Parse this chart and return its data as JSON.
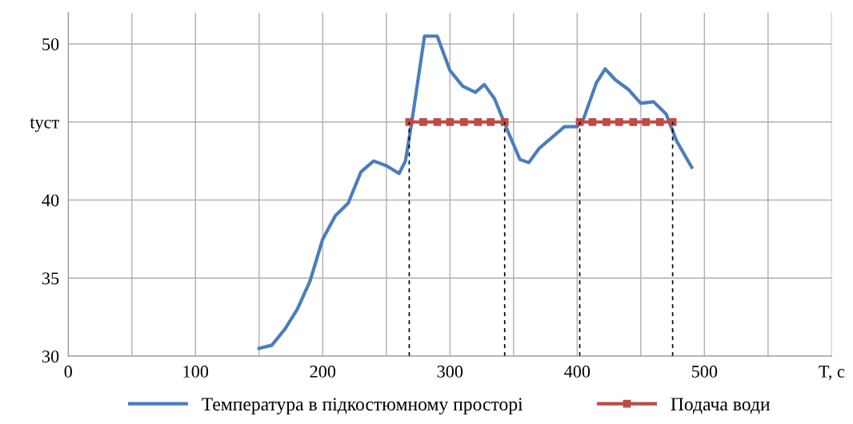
{
  "chart_data": {
    "type": "line",
    "xlim": [
      0,
      600
    ],
    "ylim": [
      30,
      52
    ],
    "xticks": [
      0,
      {
        "value": 50,
        "label": null
      },
      100,
      {
        "value": 150,
        "label": null
      },
      200,
      {
        "value": 250,
        "label": null
      },
      300,
      {
        "value": 350,
        "label": null
      },
      400,
      {
        "value": 450,
        "label": null
      },
      500,
      {
        "value": 550,
        "label": null
      },
      {
        "value": 600,
        "label": "T, c"
      }
    ],
    "yticks": [
      30,
      35,
      40,
      {
        "value": 45,
        "label": "tуст"
      },
      50
    ],
    "grid": true,
    "legend": "bottom",
    "marker": "none",
    "line_style": "solid",
    "series": [
      {
        "name": "Температура в підкостюмному просторі",
        "color": "#4a7ebb",
        "x": [
          150,
          160,
          170,
          180,
          190,
          200,
          210,
          220,
          230,
          240,
          250,
          260,
          265,
          270,
          280,
          290,
          300,
          310,
          320,
          327,
          335,
          345,
          355,
          362,
          370,
          380,
          390,
          400,
          405,
          415,
          422,
          430,
          440,
          450,
          460,
          470,
          478,
          490
        ],
        "values": [
          30.5,
          30.7,
          31.7,
          33,
          34.8,
          37.5,
          39,
          39.8,
          41.8,
          42.5,
          42.2,
          41.7,
          42.5,
          45,
          50.5,
          50.5,
          48.3,
          47.3,
          46.9,
          47.4,
          46.5,
          44.5,
          42.6,
          42.4,
          43.3,
          44,
          44.7,
          44.7,
          45.2,
          47.5,
          48.4,
          47.7,
          47.1,
          46.2,
          46.3,
          45.5,
          43.8,
          42.1
        ]
      },
      {
        "name": "Подача води",
        "color": "#be4b48",
        "marker": "square",
        "x": [
          268,
          279,
          290,
          300,
          311,
          322,
          332,
          343,
          372,
          402,
          412,
          423,
          433,
          444,
          454,
          465,
          475
        ],
        "values": [
          45,
          45,
          45,
          45,
          45,
          45,
          45,
          45,
          null,
          45,
          45,
          45,
          45,
          45,
          45,
          45,
          45
        ]
      },
      {
        "color": "#000000",
        "line_style": "dashed",
        "x": [
          268,
          268
        ],
        "values": [
          30,
          45
        ]
      },
      {
        "color": "#000000",
        "line_style": "dashed",
        "x": [
          343,
          343
        ],
        "values": [
          30,
          45
        ]
      },
      {
        "color": "#000000",
        "line_style": "dashed",
        "x": [
          402,
          402
        ],
        "values": [
          30,
          45
        ]
      },
      {
        "color": "#000000",
        "line_style": "dashed",
        "x": [
          475,
          475
        ],
        "values": [
          30,
          45
        ]
      }
    ]
  }
}
